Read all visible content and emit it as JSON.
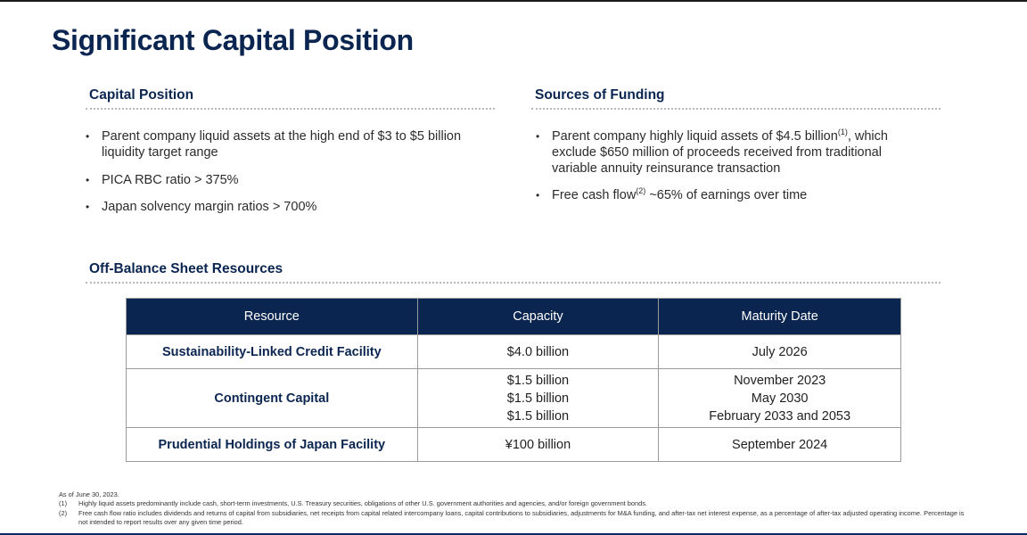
{
  "title": "Significant Capital Position",
  "capital_position": {
    "heading": "Capital Position",
    "bullets": [
      "Parent company liquid assets at the high end of $3 to $5 billion liquidity target range",
      "PICA RBC ratio > 375%",
      "Japan solvency margin ratios > 700%"
    ]
  },
  "sources_of_funding": {
    "heading": "Sources of Funding",
    "bullet1_pre": "Parent company highly liquid assets of $4.5 billion",
    "bullet1_sup": "(1)",
    "bullet1_post": ", which exclude $650 million of proceeds received from traditional variable annuity reinsurance transaction",
    "bullet2_pre": "Free cash flow",
    "bullet2_sup": "(2)",
    "bullet2_post": " ~65% of earnings over time"
  },
  "off_balance": {
    "heading": "Off-Balance Sheet Resources",
    "columns": [
      "Resource",
      "Capacity",
      "Maturity Date"
    ],
    "rows": [
      {
        "resource": "Sustainability-Linked Credit Facility",
        "capacity": [
          "$4.0 billion"
        ],
        "maturity": [
          "July 2026"
        ]
      },
      {
        "resource": "Contingent Capital",
        "capacity": [
          "$1.5 billion",
          "$1.5 billion",
          "$1.5 billion"
        ],
        "maturity": [
          "November 2023",
          "May 2030",
          "February 2033 and 2053"
        ]
      },
      {
        "resource": "Prudential Holdings of Japan Facility",
        "capacity": [
          "¥100 billion"
        ],
        "maturity": [
          "September 2024"
        ]
      }
    ]
  },
  "footnotes": {
    "as_of": "As of June 30, 2023.",
    "notes": [
      {
        "num": "(1)",
        "text": "Highly liquid assets predominantly include cash, short-term investments, U.S. Treasury securities, obligations of other U.S. government authorities and agencies, and/or foreign government bonds."
      },
      {
        "num": "(2)",
        "text": "Free cash flow ratio includes dividends and returns of capital from subsidiaries, net receipts from capital related intercompany loans, capital contributions to subsidiaries, adjustments for M&A funding, and after-tax net interest expense, as a percentage of after-tax adjusted operating income. Percentage is not intended to report results over any given time period."
      }
    ]
  },
  "colors": {
    "navy": "#0b2551",
    "rule": "#b9b9b9"
  }
}
